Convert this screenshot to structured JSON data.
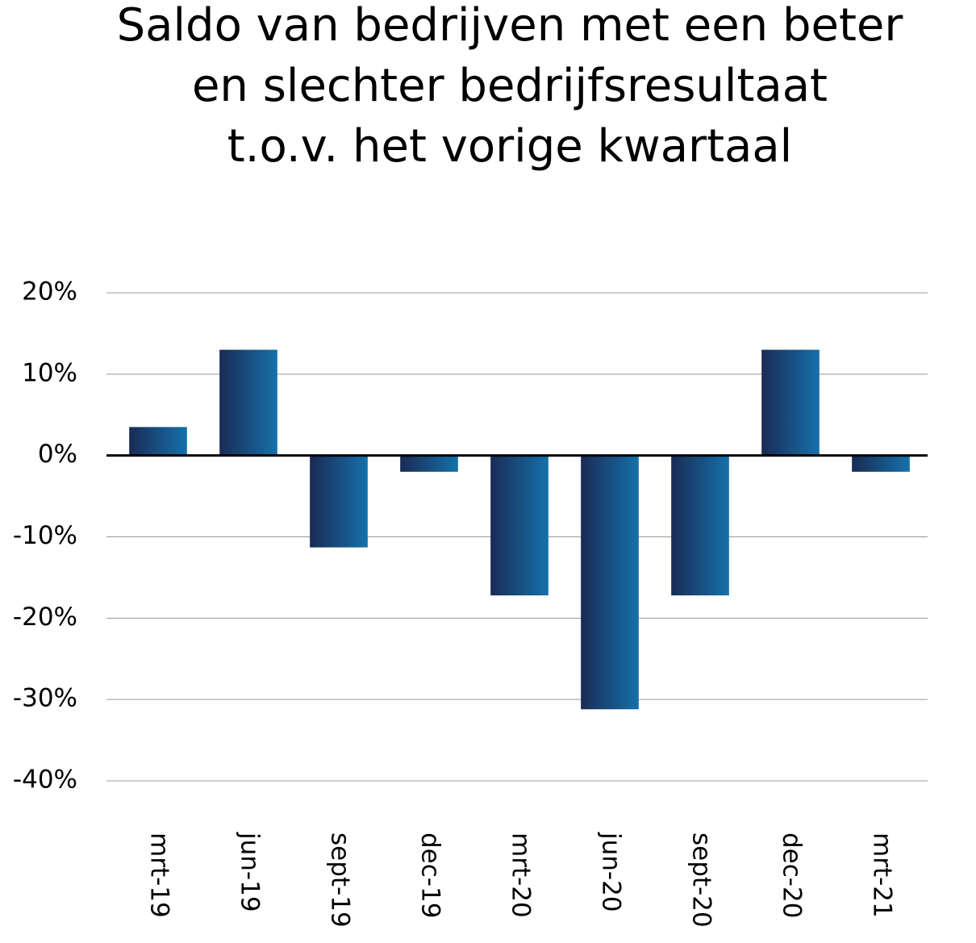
{
  "chart_data": {
    "type": "bar",
    "title": [
      "Saldo van bedrijven met een beter",
      "en slechter bedrijfsresultaat",
      "t.o.v. het vorige kwartaal"
    ],
    "categories": [
      "mrt-19",
      "jun-19",
      "sept-19",
      "dec-19",
      "mrt-20",
      "jun-20",
      "sept-20",
      "dec-20",
      "mrt-21"
    ],
    "values": [
      3.5,
      13,
      -11.3,
      -2,
      -17.2,
      -31.2,
      -17.2,
      13,
      -2
    ],
    "gradient": [
      "#1a2b55",
      "#1571aa"
    ],
    "ylim": [
      -40,
      20
    ],
    "yticks": [
      {
        "value": -40,
        "label": "-40%"
      },
      {
        "value": -30,
        "label": "-30%"
      },
      {
        "value": -20,
        "label": "-20%"
      },
      {
        "value": -10,
        "label": "-10%"
      },
      {
        "value": 0,
        "label": "0%"
      },
      {
        "value": 10,
        "label": "10%"
      },
      {
        "value": 20,
        "label": "20%"
      }
    ],
    "grid": true
  }
}
